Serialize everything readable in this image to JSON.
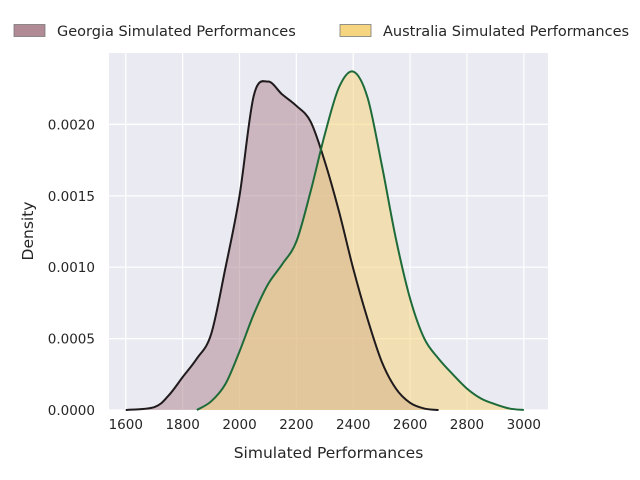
{
  "chart_data": {
    "type": "area",
    "title": "",
    "xlabel": "Simulated Performances",
    "ylabel": "Density",
    "xlim": [
      1541,
      3085
    ],
    "ylim": [
      0,
      0.0025
    ],
    "grid": true,
    "legend_placement": "top, outside plot",
    "xticks": [
      1600,
      1800,
      2000,
      2200,
      2400,
      2600,
      2800,
      3000
    ],
    "xtick_labels": [
      "1600",
      "1800",
      "2000",
      "2200",
      "2400",
      "2600",
      "2800",
      "3000"
    ],
    "yticks": [
      0,
      0.0005,
      0.001,
      0.0015,
      0.002
    ],
    "ytick_labels": [
      "0.0000",
      "0.0005",
      "0.0010",
      "0.0015",
      "0.0020"
    ],
    "series": [
      {
        "name": "Georgia Simulated Performances",
        "fill_color": "#b08b95",
        "line_color": "#1f1a1c",
        "x": [
          1600,
          1700,
          1750,
          1800,
          1850,
          1900,
          1950,
          2000,
          2050,
          2100,
          2150,
          2200,
          2250,
          2300,
          2350,
          2400,
          2450,
          2500,
          2550,
          2600,
          2650,
          2700
        ],
        "y": [
          0,
          2e-05,
          0.0001,
          0.00023,
          0.00036,
          0.00053,
          0.00099,
          0.0015,
          0.0022,
          0.0023,
          0.00221,
          0.00213,
          0.00202,
          0.00174,
          0.00139,
          0.00099,
          0.00064,
          0.00034,
          0.00015,
          5e-05,
          1e-05,
          0
        ]
      },
      {
        "name": "Australia Simulated Performances",
        "fill_color": "#f5d57f",
        "line_color": "#1e6b3a",
        "x": [
          1850,
          1900,
          1950,
          2000,
          2050,
          2100,
          2150,
          2200,
          2250,
          2300,
          2350,
          2400,
          2450,
          2500,
          2550,
          2600,
          2650,
          2700,
          2750,
          2800,
          2850,
          2900,
          2950,
          3000
        ],
        "y": [
          0,
          6e-05,
          0.00018,
          0.00041,
          0.00067,
          0.00088,
          0.00102,
          0.00118,
          0.00153,
          0.00193,
          0.00226,
          0.00237,
          0.00219,
          0.00172,
          0.0012,
          0.00078,
          0.0005,
          0.00036,
          0.00025,
          0.00015,
          8e-05,
          4e-05,
          1e-05,
          0
        ]
      }
    ]
  }
}
